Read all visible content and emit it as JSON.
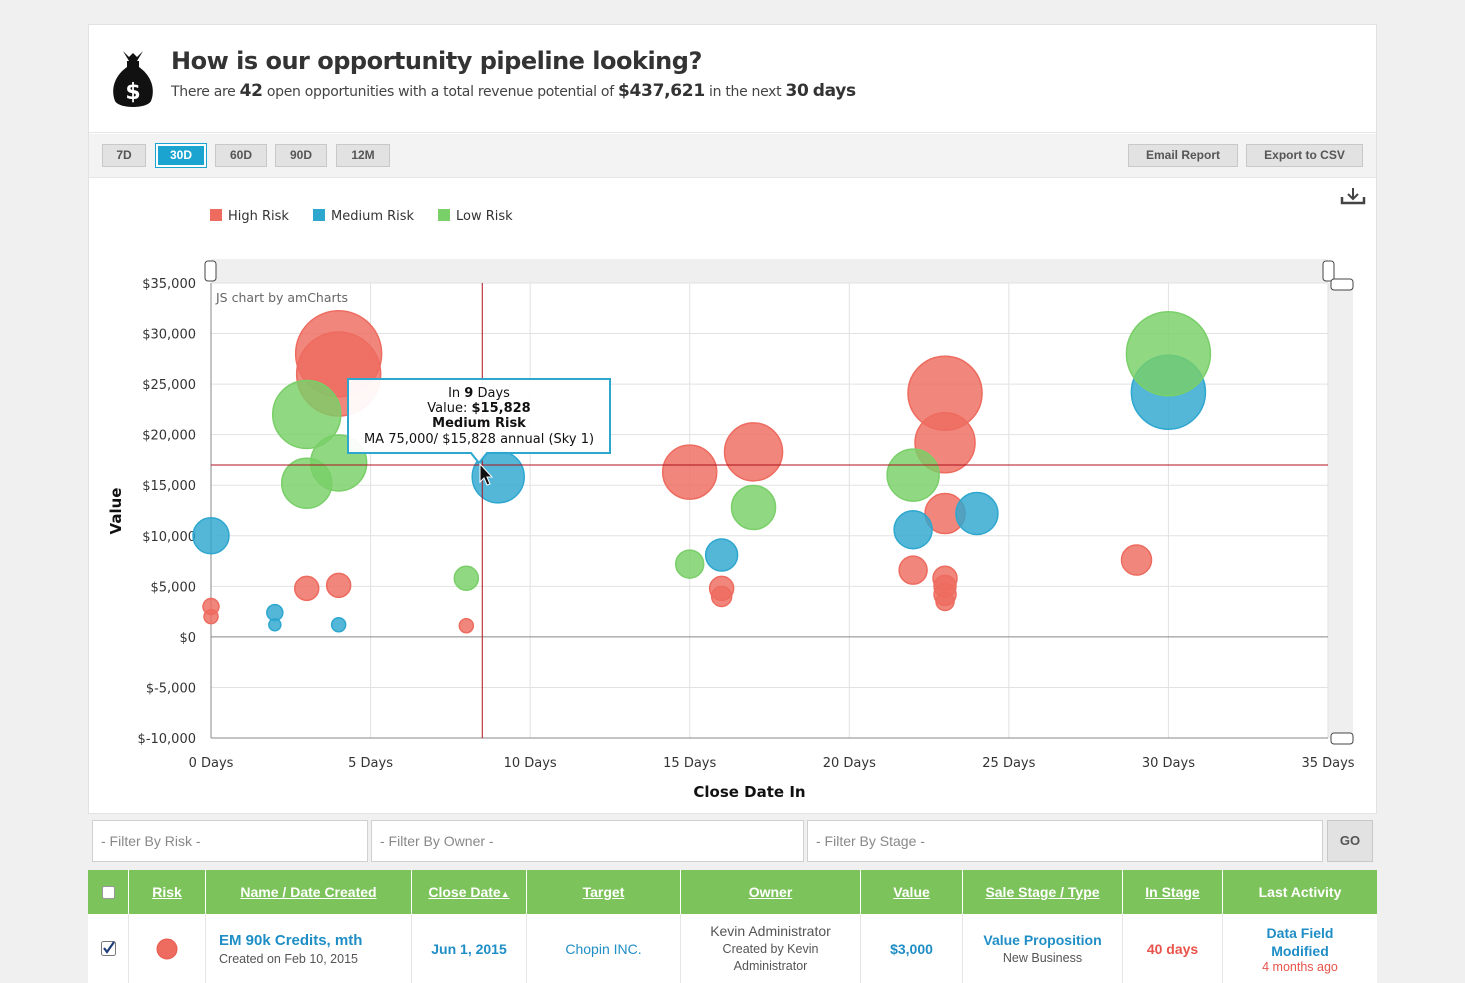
{
  "header": {
    "title": "How is our opportunity pipeline looking?",
    "sub_prefix": "There are",
    "open_count": "42",
    "sub_middle": "open opportunities with a total revenue potential of",
    "revenue": "$437,621",
    "sub_suffix": "in the next",
    "days_num": "30",
    "days_word": "days"
  },
  "ranges": [
    "7D",
    "30D",
    "60D",
    "90D",
    "12M"
  ],
  "active_range": "30D",
  "actions": {
    "email": "Email Report",
    "export": "Export to CSV"
  },
  "chart_data": {
    "type": "scatter",
    "watermark": "JS chart by amCharts",
    "xlabel": "Close Date In",
    "ylabel": "Value",
    "xlim": [
      0,
      35
    ],
    "ylim": [
      -10000,
      35000
    ],
    "x_ticks": [
      "0 Days",
      "5 Days",
      "10 Days",
      "15 Days",
      "20 Days",
      "25 Days",
      "30 Days",
      "35 Days"
    ],
    "y_ticks": [
      "$35,000",
      "$30,000",
      "$25,000",
      "$20,000",
      "$15,000",
      "$10,000",
      "$5,000",
      "$0",
      "$-5,000",
      "$-10,000"
    ],
    "legend": [
      {
        "name": "High Risk",
        "color": "#ee6b5f"
      },
      {
        "name": "Medium Risk",
        "color": "#2ea7cf"
      },
      {
        "name": "Low Risk",
        "color": "#79cf68"
      }
    ],
    "cursor": {
      "x": 8.5,
      "y": 17000
    },
    "series": [
      {
        "name": "High Risk",
        "color": "#ee6b5f",
        "points": [
          {
            "x": 4,
            "y": 28000,
            "r": 43
          },
          {
            "x": 4,
            "y": 26000,
            "r": 42
          },
          {
            "x": 3,
            "y": 4800,
            "r": 12
          },
          {
            "x": 4,
            "y": 5100,
            "r": 12
          },
          {
            "x": 0,
            "y": 3000,
            "r": 8
          },
          {
            "x": 0,
            "y": 2000,
            "r": 7
          },
          {
            "x": 8,
            "y": 1100,
            "r": 7
          },
          {
            "x": 15,
            "y": 16300,
            "r": 27
          },
          {
            "x": 17,
            "y": 18300,
            "r": 29
          },
          {
            "x": 16,
            "y": 4800,
            "r": 12
          },
          {
            "x": 16,
            "y": 4000,
            "r": 10
          },
          {
            "x": 23,
            "y": 24100,
            "r": 37
          },
          {
            "x": 23,
            "y": 19200,
            "r": 30
          },
          {
            "x": 23,
            "y": 12200,
            "r": 20
          },
          {
            "x": 22,
            "y": 6600,
            "r": 14
          },
          {
            "x": 23,
            "y": 5800,
            "r": 12
          },
          {
            "x": 23,
            "y": 5000,
            "r": 11
          },
          {
            "x": 23,
            "y": 4200,
            "r": 11
          },
          {
            "x": 23,
            "y": 3500,
            "r": 9
          },
          {
            "x": 29,
            "y": 7600,
            "r": 15
          }
        ]
      },
      {
        "name": "Medium Risk",
        "color": "#2ea7cf",
        "points": [
          {
            "x": 0,
            "y": 10000,
            "r": 18
          },
          {
            "x": 2,
            "y": 2400,
            "r": 8
          },
          {
            "x": 2,
            "y": 1200,
            "r": 6
          },
          {
            "x": 4,
            "y": 1200,
            "r": 7
          },
          {
            "x": 9,
            "y": 15828,
            "r": 26
          },
          {
            "x": 16,
            "y": 8100,
            "r": 16
          },
          {
            "x": 22,
            "y": 10600,
            "r": 19
          },
          {
            "x": 24,
            "y": 12200,
            "r": 21
          },
          {
            "x": 30,
            "y": 24200,
            "r": 37
          }
        ]
      },
      {
        "name": "Low Risk",
        "color": "#79cf68",
        "points": [
          {
            "x": 3,
            "y": 22000,
            "r": 34
          },
          {
            "x": 4,
            "y": 17200,
            "r": 28
          },
          {
            "x": 3,
            "y": 15200,
            "r": 25
          },
          {
            "x": 8,
            "y": 5800,
            "r": 12
          },
          {
            "x": 15,
            "y": 7200,
            "r": 14
          },
          {
            "x": 17,
            "y": 12800,
            "r": 22
          },
          {
            "x": 22,
            "y": 16000,
            "r": 26
          },
          {
            "x": 30,
            "y": 28000,
            "r": 42
          }
        ]
      }
    ],
    "tooltip": {
      "in_prefix": "In",
      "in_days": "9",
      "in_suffix": "Days",
      "value_label": "Value:",
      "value": "$15,828",
      "risk": "Medium Risk",
      "desc": "MA 75,000/ $15,828 annual (Sky 1)"
    }
  },
  "filters": {
    "risk": "- Filter By Risk -",
    "owner": "- Filter By Owner -",
    "stage": "- Filter By Stage -",
    "go": "GO"
  },
  "table": {
    "columns": [
      "Risk",
      "Name / Date Created",
      "Close Date",
      "Target",
      "Owner",
      "Value",
      "Sale Stage / Type",
      "In Stage",
      "Last Activity"
    ],
    "sort_arrow": "▲",
    "row": {
      "risk_color": "#ee6b5f",
      "name": "EM 90k Credits, mth",
      "created": "Created on Feb 10, 2015",
      "close_date": "Jun 1, 2015",
      "target": "Chopin INC.",
      "owner": "Kevin Administrator",
      "owner_created": "Created by Kevin Administrator",
      "value": "$3,000",
      "stage": "Value Proposition",
      "type": "New Business",
      "in_stage": "40 days",
      "activity": "Data Field Modified",
      "activity_time": "4 months ago"
    }
  }
}
